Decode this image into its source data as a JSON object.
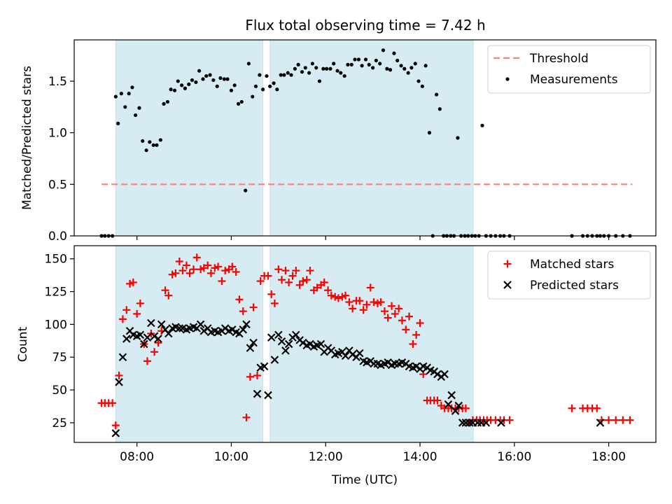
{
  "chart_data": [
    {
      "type": "scatter",
      "title": "Flux total observing time = 7.42 h",
      "xlabel": "",
      "ylabel": "Matched/Predicted stars",
      "xlim": [
        6.67,
        19.0
      ],
      "ylim": [
        0,
        1.9
      ],
      "yticks": [
        0.0,
        0.5,
        1.0,
        1.5
      ],
      "ytick_labels": [
        "0.0",
        "0.5",
        "1.0",
        "1.5"
      ],
      "xticks": [
        8,
        10,
        12,
        14,
        16,
        18
      ],
      "xtick_labels": [],
      "grid": false,
      "legend": "top-right",
      "legend_entries": [
        "Threshold",
        "Measurements"
      ],
      "shaded_intervals": [
        [
          7.55,
          10.67
        ],
        [
          10.82,
          15.13
        ]
      ],
      "threshold": {
        "name": "Threshold",
        "x": [
          7.25,
          18.5
        ],
        "y": 0.5,
        "color": "#ff7f7f"
      },
      "series": [
        {
          "name": "Measurements",
          "color": "#000000",
          "x": [
            7.25,
            7.32,
            7.4,
            7.48,
            7.55,
            7.6,
            7.67,
            7.75,
            7.83,
            7.9,
            7.97,
            8.05,
            8.12,
            8.2,
            8.27,
            8.35,
            8.42,
            8.5,
            8.57,
            8.65,
            8.72,
            8.8,
            8.87,
            8.95,
            9.02,
            9.1,
            9.17,
            9.25,
            9.32,
            9.4,
            9.47,
            9.55,
            9.62,
            9.7,
            9.77,
            9.85,
            9.92,
            10.0,
            10.07,
            10.15,
            10.22,
            10.3,
            10.37,
            10.45,
            10.52,
            10.6,
            10.67,
            10.75,
            10.82,
            10.9,
            10.97,
            11.05,
            11.12,
            11.2,
            11.27,
            11.35,
            11.42,
            11.5,
            11.57,
            11.65,
            11.72,
            11.8,
            11.87,
            11.95,
            12.02,
            12.1,
            12.17,
            12.25,
            12.32,
            12.4,
            12.47,
            12.55,
            12.62,
            12.7,
            12.77,
            12.85,
            12.92,
            13.0,
            13.07,
            13.15,
            13.22,
            13.3,
            13.37,
            13.45,
            13.52,
            13.6,
            13.67,
            13.75,
            13.82,
            13.9,
            13.97,
            14.05,
            14.12,
            14.2,
            14.27,
            14.35,
            14.42,
            14.5,
            14.57,
            14.65,
            14.72,
            14.8,
            14.87,
            14.95,
            15.02,
            15.1,
            15.17,
            15.25,
            15.32,
            15.4,
            15.5,
            15.6,
            15.7,
            15.78,
            15.9,
            17.22,
            17.45,
            17.55,
            17.65,
            17.75,
            17.82,
            17.9,
            18.0,
            18.15,
            18.3,
            18.45
          ],
          "y": [
            0.0,
            0.0,
            0.0,
            0.0,
            1.35,
            1.09,
            1.38,
            1.25,
            1.38,
            1.44,
            1.17,
            1.24,
            0.92,
            0.83,
            0.91,
            0.88,
            0.88,
            0.93,
            1.28,
            1.3,
            1.42,
            1.41,
            1.5,
            1.46,
            1.43,
            1.47,
            1.51,
            1.49,
            1.6,
            1.52,
            1.55,
            1.56,
            1.51,
            1.45,
            1.53,
            1.52,
            1.52,
            1.41,
            1.46,
            1.28,
            1.3,
            0.44,
            1.67,
            1.35,
            1.45,
            1.56,
            1.42,
            1.55,
            1.45,
            1.48,
            1.42,
            1.56,
            1.56,
            1.58,
            1.56,
            1.62,
            1.66,
            1.59,
            1.63,
            1.58,
            1.67,
            1.63,
            1.5,
            1.62,
            1.62,
            1.62,
            1.67,
            1.6,
            1.58,
            1.55,
            1.66,
            1.66,
            1.71,
            1.71,
            1.65,
            1.71,
            1.66,
            1.63,
            1.7,
            1.67,
            1.8,
            1.62,
            1.61,
            1.77,
            1.7,
            1.65,
            1.62,
            1.58,
            1.63,
            1.67,
            1.5,
            1.45,
            1.65,
            1.0,
            0.0,
            1.37,
            1.23,
            0.0,
            0.0,
            0.0,
            0.0,
            0.95,
            0.0,
            0.0,
            0.0,
            0.0,
            0.0,
            0.0,
            1.07,
            0.0,
            0.0,
            0.0,
            0.0,
            0.0,
            0.0,
            0.0,
            0.0,
            0.0,
            0.0,
            0.0,
            0.0,
            0.0,
            0.0,
            0.0,
            0.0,
            0.0
          ]
        }
      ]
    },
    {
      "type": "scatter",
      "title": "",
      "xlabel": "Time (UTC)",
      "ylabel": "Count",
      "xlim": [
        6.67,
        19.0
      ],
      "ylim": [
        10,
        160
      ],
      "yticks": [
        25,
        50,
        75,
        100,
        125,
        150
      ],
      "ytick_labels": [
        "25",
        "50",
        "75",
        "100",
        "125",
        "150"
      ],
      "xticks": [
        8,
        10,
        12,
        14,
        16,
        18
      ],
      "xtick_labels": [
        "08:00",
        "10:00",
        "12:00",
        "14:00",
        "16:00",
        "18:00"
      ],
      "grid": false,
      "legend": "top-right",
      "legend_entries": [
        "Matched stars",
        "Predicted stars"
      ],
      "shaded_intervals": [
        [
          7.55,
          10.67
        ],
        [
          10.82,
          15.13
        ]
      ],
      "series": [
        {
          "name": "Matched stars",
          "marker": "plus",
          "color": "#ff0000",
          "x": [
            7.25,
            7.32,
            7.4,
            7.48,
            7.55,
            7.62,
            7.7,
            7.78,
            7.85,
            7.92,
            8.0,
            8.07,
            8.15,
            8.22,
            8.3,
            8.37,
            8.45,
            8.52,
            8.6,
            8.67,
            8.75,
            8.82,
            8.9,
            8.97,
            9.05,
            9.12,
            9.2,
            9.27,
            9.35,
            9.42,
            9.5,
            9.57,
            9.65,
            9.72,
            9.8,
            9.87,
            9.95,
            10.02,
            10.1,
            10.17,
            10.25,
            10.32,
            10.4,
            10.47,
            10.55,
            10.62,
            10.7,
            10.78,
            10.85,
            10.92,
            11.0,
            11.07,
            11.15,
            11.22,
            11.3,
            11.37,
            11.45,
            11.52,
            11.6,
            11.67,
            11.75,
            11.82,
            11.9,
            11.97,
            12.05,
            12.12,
            12.2,
            12.27,
            12.35,
            12.42,
            12.5,
            12.57,
            12.65,
            12.72,
            12.8,
            12.87,
            12.95,
            13.02,
            13.1,
            13.17,
            13.25,
            13.32,
            13.4,
            13.47,
            13.55,
            13.62,
            13.7,
            13.77,
            13.85,
            13.92,
            14.0,
            14.07,
            14.15,
            14.22,
            14.3,
            14.37,
            14.45,
            14.52,
            14.6,
            14.67,
            14.75,
            14.82,
            14.9,
            14.97,
            15.05,
            15.12,
            15.2,
            15.27,
            15.35,
            15.42,
            15.5,
            15.6,
            15.7,
            15.78,
            15.9,
            17.22,
            17.45,
            17.55,
            17.65,
            17.75,
            17.85,
            18.0,
            18.15,
            18.3,
            18.45
          ],
          "y": [
            40,
            40,
            40,
            40,
            23,
            61,
            104,
            111,
            131,
            132,
            108,
            116,
            85,
            72,
            93,
            79,
            86,
            95,
            126,
            122,
            138,
            139,
            148,
            141,
            145,
            139,
            142,
            151,
            142,
            143,
            145,
            139,
            143,
            144,
            133,
            141,
            142,
            144,
            140,
            119,
            110,
            29,
            60,
            113,
            61,
            133,
            137,
            137,
            123,
            116,
            142,
            134,
            141,
            132,
            137,
            141,
            130,
            133,
            134,
            141,
            126,
            128,
            130,
            132,
            126,
            122,
            121,
            120,
            121,
            122,
            117,
            112,
            118,
            118,
            111,
            115,
            128,
            117,
            116,
            117,
            110,
            105,
            114,
            108,
            112,
            103,
            96,
            106,
            85,
            92,
            101,
            62,
            42,
            42,
            42,
            42,
            38,
            36,
            36,
            36,
            36,
            36,
            36,
            36,
            25,
            27,
            27,
            27,
            27,
            27,
            27,
            27,
            27,
            27,
            27,
            36,
            36,
            36,
            36,
            36,
            27,
            27,
            27,
            27,
            27
          ],
          "note_pairs": "x and y arrays align index-by-index"
        },
        {
          "name": "Predicted stars",
          "marker": "cross",
          "color": "#000000",
          "x": [
            7.55,
            7.62,
            7.7,
            7.78,
            7.85,
            7.92,
            8.0,
            8.07,
            8.15,
            8.22,
            8.3,
            8.37,
            8.45,
            8.52,
            8.6,
            8.67,
            8.75,
            8.82,
            8.9,
            8.97,
            9.05,
            9.12,
            9.2,
            9.27,
            9.35,
            9.42,
            9.5,
            9.57,
            9.65,
            9.72,
            9.8,
            9.87,
            9.95,
            10.02,
            10.1,
            10.17,
            10.25,
            10.32,
            10.4,
            10.47,
            10.55,
            10.62,
            10.7,
            10.78,
            10.85,
            10.92,
            11.0,
            11.07,
            11.15,
            11.22,
            11.3,
            11.37,
            11.45,
            11.52,
            11.6,
            11.67,
            11.75,
            11.82,
            11.9,
            11.97,
            12.05,
            12.12,
            12.2,
            12.27,
            12.35,
            12.42,
            12.5,
            12.57,
            12.65,
            12.72,
            12.8,
            12.87,
            12.95,
            13.02,
            13.1,
            13.17,
            13.25,
            13.32,
            13.4,
            13.47,
            13.55,
            13.62,
            13.7,
            13.77,
            13.85,
            13.92,
            14.0,
            14.07,
            14.15,
            14.22,
            14.3,
            14.37,
            14.45,
            14.52,
            14.6,
            14.67,
            14.75,
            14.82,
            14.9,
            14.97,
            15.05,
            15.12,
            15.22,
            15.3,
            15.4,
            15.72,
            17.82
          ],
          "y": [
            17,
            56,
            75,
            89,
            95,
            92,
            91,
            92,
            85,
            90,
            101,
            91,
            89,
            100,
            96,
            93,
            97,
            98,
            97,
            97,
            96,
            97,
            98,
            97,
            100,
            95,
            97,
            94,
            95,
            94,
            95,
            97,
            95,
            96,
            94,
            93,
            96,
            100,
            82,
            86,
            47,
            67,
            68,
            46,
            90,
            73,
            92,
            87,
            80,
            85,
            90,
            92,
            88,
            86,
            84,
            85,
            83,
            84,
            85,
            79,
            82,
            80,
            77,
            78,
            79,
            76,
            80,
            77,
            75,
            78,
            72,
            71,
            72,
            70,
            70,
            69,
            70,
            71,
            69,
            70,
            70,
            71,
            70,
            68,
            67,
            68,
            66,
            68,
            67,
            65,
            64,
            62,
            60,
            62,
            39,
            46,
            34,
            38,
            25,
            25,
            25,
            25,
            25,
            25,
            25,
            25,
            25
          ]
        }
      ]
    }
  ]
}
